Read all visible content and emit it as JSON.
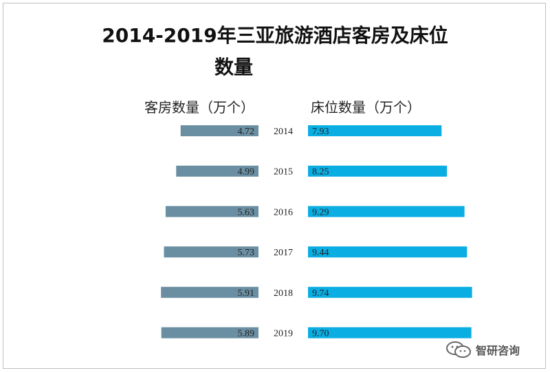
{
  "chart_data": {
    "type": "bar",
    "layout": "butterfly",
    "title_line1": "2014-2019年三亚旅游酒店客房及床位",
    "title_line2": "数量",
    "categories": [
      "2014",
      "2015",
      "2016",
      "2017",
      "2018",
      "2019"
    ],
    "series": [
      {
        "name": "客房数量（万个）",
        "values": [
          4.72,
          4.99,
          5.63,
          5.73,
          5.91,
          5.89
        ],
        "color": "#6a8fa2",
        "direction": "left"
      },
      {
        "name": "床位数量（万个）",
        "values": [
          7.93,
          8.25,
          9.29,
          9.44,
          9.74,
          9.7
        ],
        "color": "#0aaee3",
        "direction": "right"
      }
    ],
    "labels": {
      "left": [
        "4.72",
        "4.99",
        "5.63",
        "5.73",
        "5.91",
        "5.89"
      ],
      "right": [
        "7.93",
        "8.25",
        "9.29",
        "9.44",
        "9.74",
        "9.70"
      ]
    }
  },
  "watermark": {
    "text": "智研咨询",
    "icon": "wechat-icon"
  }
}
